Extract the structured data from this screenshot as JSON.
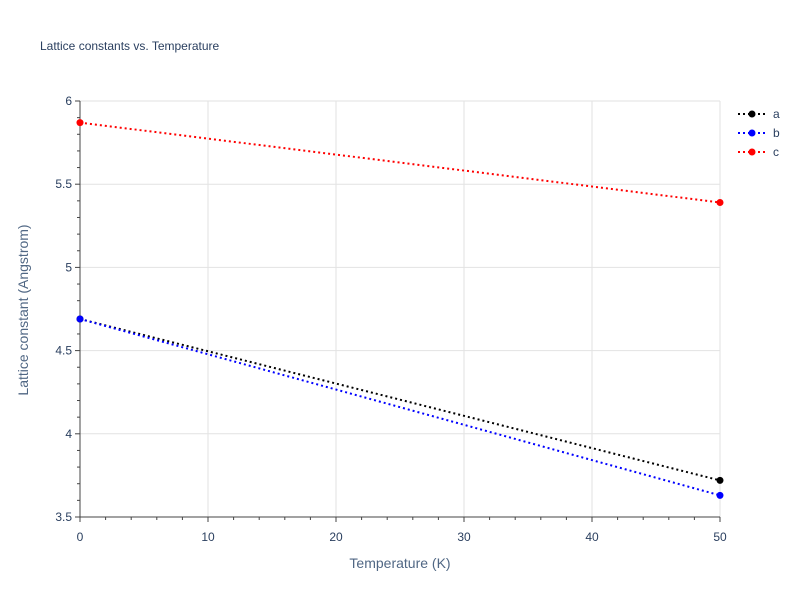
{
  "chart_data": {
    "type": "line",
    "title": "Lattice constants vs. Temperature",
    "xlabel": "Temperature (K)",
    "ylabel": "Lattice constant (Angstrom)",
    "xlim": [
      0,
      50
    ],
    "ylim": [
      3.5,
      6
    ],
    "xticks": [
      0,
      10,
      20,
      30,
      40,
      50
    ],
    "xtick_labels": [
      "0",
      "10",
      "20",
      "30",
      "40",
      "50"
    ],
    "yticks": [
      3.5,
      4,
      4.5,
      5,
      5.5,
      6
    ],
    "ytick_labels": [
      "3.5",
      "4",
      "4.5",
      "5",
      "5.5",
      "6"
    ],
    "grid": true,
    "legend_position": "top-right",
    "line_style": "dotted",
    "series": [
      {
        "name": "a",
        "color": "#000000",
        "x": [
          0,
          50
        ],
        "y": [
          4.69,
          3.72
        ]
      },
      {
        "name": "b",
        "color": "#0000ff",
        "x": [
          0,
          50
        ],
        "y": [
          4.69,
          3.63
        ]
      },
      {
        "name": "c",
        "color": "#ff0000",
        "x": [
          0,
          50
        ],
        "y": [
          5.87,
          5.39
        ]
      }
    ]
  }
}
